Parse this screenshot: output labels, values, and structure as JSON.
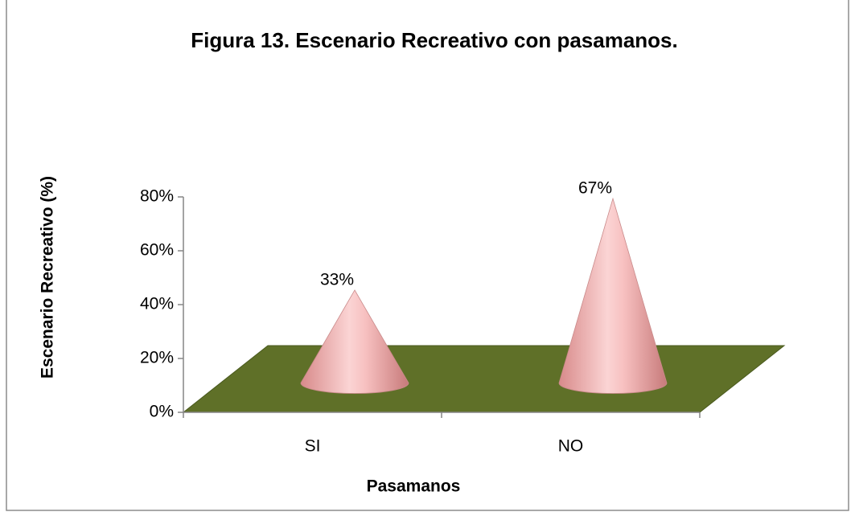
{
  "chart_data": {
    "type": "cone",
    "title": "Figura 13. Escenario Recreativo con pasamanos.",
    "x_label": "Pasamanos",
    "y_label": "Escenario Recreativo (%)",
    "categories": [
      "SI",
      "NO"
    ],
    "values": [
      33,
      67
    ],
    "value_labels": [
      "33%",
      "67%"
    ],
    "color": "#e8a0a0",
    "floor_color": "#5f7028",
    "ylim": [
      0,
      80
    ],
    "yticks": [
      {
        "value": 0,
        "label": "0%"
      },
      {
        "value": 20,
        "label": "20%"
      },
      {
        "value": 40,
        "label": "40%"
      },
      {
        "value": 60,
        "label": "60%"
      },
      {
        "value": 80,
        "label": "80%"
      }
    ]
  }
}
